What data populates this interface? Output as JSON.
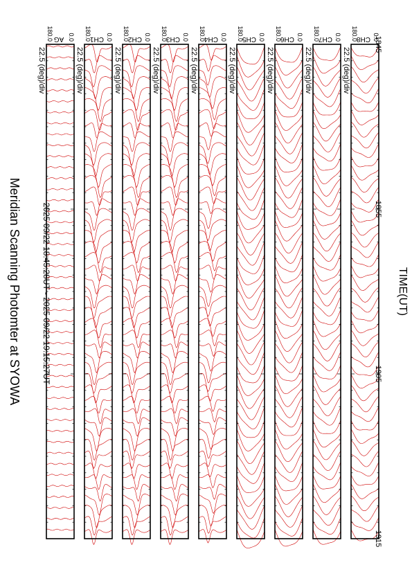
{
  "page": {
    "title": "Meridian Scanning Photomter at SYOWA",
    "period": "2025 09/22 18:45:28UT - 2025 09/22 19:15:27UT",
    "time_axis_label": "TIME(UT)",
    "time_ticks": [
      "1845",
      "1855",
      "1905",
      "1915"
    ]
  },
  "chart_data": {
    "type": "line",
    "title": "Meridian Scanning Photomter at SYOWA",
    "subtitle": "2025 09/22 18:45:28UT - 2025 09/22 19:15:27UT",
    "xlabel": "TIME(UT)",
    "x_ticks": [
      "1845",
      "1855",
      "1905",
      "1915"
    ],
    "scan_count": 45,
    "line_color": "#d00000",
    "panels": [
      {
        "channel": "AG",
        "scale": "22.5 (deg)/div",
        "angle_ticks": [
          "180.0",
          "0.0"
        ],
        "style": "flat",
        "amplitude": 0.15
      },
      {
        "channel": "CH1",
        "scale": "22.5 (deg)/div",
        "angle_ticks": [
          "180.0",
          "0.0"
        ],
        "style": "peak",
        "amplitude": 1.0
      },
      {
        "channel": "CH2",
        "scale": "22.5 (deg)/div",
        "angle_ticks": [
          "180.0",
          "0.0"
        ],
        "style": "peak",
        "amplitude": 1.0
      },
      {
        "channel": "CH3",
        "scale": "22.5 (deg)/div",
        "angle_ticks": [
          "180.0",
          "0.0"
        ],
        "style": "peak",
        "amplitude": 1.0
      },
      {
        "channel": "CH4",
        "scale": "22.5 (deg)/div",
        "angle_ticks": [
          "180.0",
          "0.0"
        ],
        "style": "peak",
        "amplitude": 0.9
      },
      {
        "channel": "CH5",
        "scale": "22.5 (deg)/div",
        "angle_ticks": [
          "180.0",
          "0.0"
        ],
        "style": "bump",
        "amplitude": 1.0
      },
      {
        "channel": "CH6",
        "scale": "22.5 (deg)/div",
        "angle_ticks": [
          "180.0",
          "0.0"
        ],
        "style": "bump",
        "amplitude": 0.9
      },
      {
        "channel": "CH7",
        "scale": "22.5 (deg)/div",
        "angle_ticks": [
          "180.0",
          "0.0"
        ],
        "style": "bump",
        "amplitude": 0.8
      },
      {
        "channel": "CH8",
        "scale": "22.5 (deg)/div",
        "angle_ticks": [
          "180.0",
          "0.0"
        ],
        "style": "bump",
        "amplitude": 0.6
      }
    ]
  }
}
